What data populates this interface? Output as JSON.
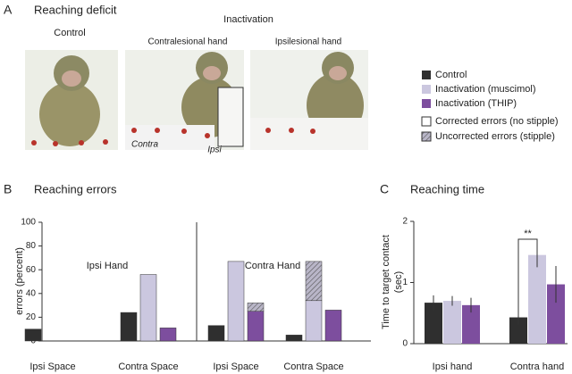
{
  "panel_a": {
    "letter": "A",
    "title": "Reaching deficit",
    "control_label": "Control",
    "inactivation_label": "Inactivation",
    "contralesional_label": "Contralesional hand",
    "ipsilesional_label": "Ipsilesional hand",
    "contra_target_label": "Contra",
    "ipsi_target_label": "Ipsi"
  },
  "chart_data": [
    {
      "type": "bar",
      "letter": "B",
      "title": "Reaching errors",
      "ylabel": "errors (percent)",
      "facets": [
        "Ipsi Hand",
        "Contra Hand"
      ],
      "categories": [
        "Ipsi Space",
        "Contra Space",
        "Ipsi Space",
        "Contra Space"
      ],
      "series": [
        {
          "name": "Control",
          "color": "#2f2f2f",
          "values": [
            10,
            24,
            13,
            5
          ],
          "uncorrected": [
            0,
            0,
            0,
            0
          ]
        },
        {
          "name": "Inactivation (muscimol)",
          "color": "#cbc7df",
          "values": [
            0,
            56,
            67,
            34
          ],
          "uncorrected": [
            0,
            0,
            0,
            33
          ]
        },
        {
          "name": "Inactivation (THIP)",
          "color": "#7d4e9e",
          "values": [
            0,
            11,
            25,
            26
          ],
          "uncorrected": [
            0,
            0,
            7,
            0
          ]
        }
      ],
      "error_types": [
        {
          "name": "Corrected errors (no stipple)"
        },
        {
          "name": "Uncorrected errors (stipple)"
        }
      ],
      "ylim": [
        0,
        100
      ],
      "yticks": [
        0,
        20,
        40,
        60,
        80,
        100
      ],
      "grid": false
    },
    {
      "type": "errorbar",
      "letter": "C",
      "title": "Reaching time",
      "ylabel": [
        "Time to target contact",
        "(sec)"
      ],
      "categories": [
        "Ipsi hand",
        "Contra hand"
      ],
      "series": [
        {
          "name": "Control",
          "color": "#2f2f2f",
          "values": [
            0.67,
            0.43
          ],
          "errors": [
            0.12,
            0.12
          ]
        },
        {
          "name": "Inactivation (muscimol)",
          "color": "#cbc7df",
          "values": [
            0.7,
            1.45
          ],
          "errors": [
            0.08,
            0.2
          ]
        },
        {
          "name": "Inactivation (THIP)",
          "color": "#7d4e9e",
          "values": [
            0.63,
            0.97
          ],
          "errors": [
            0.12,
            0.3
          ]
        }
      ],
      "annotation": "**",
      "ylim": [
        0,
        2
      ],
      "yticks": [
        0,
        1,
        2
      ],
      "grid": false
    }
  ]
}
